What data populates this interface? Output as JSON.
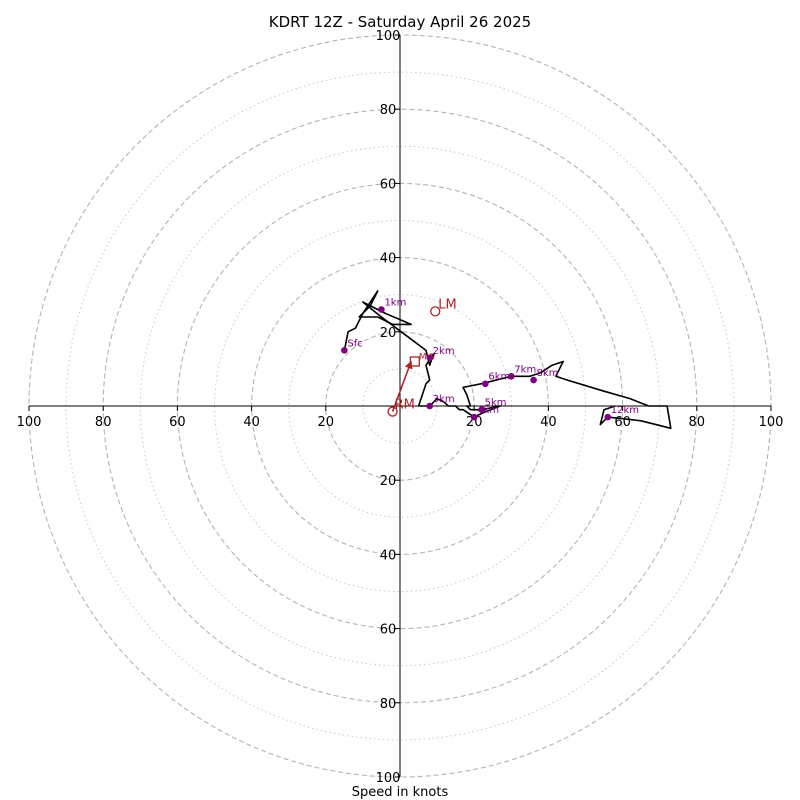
{
  "chart_data": {
    "type": "hodograph",
    "title": "KDRT 12Z - Saturday April 26 2025",
    "xlabel": "Speed in knots",
    "range": [
      -100,
      100
    ],
    "rings_major": [
      20,
      40,
      60,
      80,
      100
    ],
    "rings_minor": [
      10,
      30,
      50,
      70,
      90
    ],
    "tick_labels": {
      "left": [
        "100",
        "80",
        "60",
        "40",
        "20"
      ],
      "right": [
        "20",
        "40",
        "60",
        "80",
        "100"
      ],
      "top": [
        "20",
        "40",
        "60",
        "80",
        "100"
      ],
      "bottom": [
        "20",
        "40",
        "60",
        "80",
        "100"
      ]
    },
    "tick_values": [
      20,
      40,
      60,
      80,
      100
    ],
    "profile": {
      "color": "#000000",
      "points": [
        [
          -15,
          15
        ],
        [
          -14,
          20
        ],
        [
          -12,
          21
        ],
        [
          -10,
          25
        ],
        [
          -8,
          28
        ],
        [
          -6,
          31
        ],
        [
          -8,
          27
        ],
        [
          -11,
          24
        ],
        [
          -6,
          24
        ],
        [
          -2,
          22
        ],
        [
          3,
          22
        ],
        [
          -4,
          25
        ],
        [
          -10,
          28
        ],
        [
          -5,
          24
        ],
        [
          3,
          18
        ],
        [
          7,
          15
        ],
        [
          8,
          11
        ],
        [
          9,
          14
        ],
        [
          7,
          11
        ],
        [
          8,
          7
        ],
        [
          7,
          6
        ],
        [
          6,
          3
        ],
        [
          5,
          0
        ],
        [
          8,
          0
        ],
        [
          10,
          2
        ],
        [
          12,
          1
        ],
        [
          13,
          0
        ],
        [
          15,
          0
        ],
        [
          16,
          -1
        ],
        [
          17,
          -1
        ],
        [
          20,
          -3
        ],
        [
          22,
          -2
        ],
        [
          27,
          0
        ],
        [
          22,
          -1
        ],
        [
          19,
          -1
        ],
        [
          18,
          0
        ],
        [
          19,
          0
        ],
        [
          18,
          3
        ],
        [
          17,
          5
        ],
        [
          22,
          6
        ],
        [
          26,
          7
        ],
        [
          30,
          8
        ],
        [
          33,
          8
        ],
        [
          35,
          8
        ],
        [
          38,
          9
        ],
        [
          41,
          11
        ],
        [
          44,
          12
        ],
        [
          42,
          8
        ],
        [
          45,
          7
        ],
        [
          55,
          4
        ],
        [
          62,
          2
        ],
        [
          67,
          0
        ],
        [
          72,
          0
        ],
        [
          73,
          -6
        ],
        [
          65,
          -4
        ],
        [
          56,
          -3
        ],
        [
          54,
          -5
        ],
        [
          55,
          -1
        ],
        [
          58,
          0
        ]
      ]
    },
    "height_markers": {
      "color": "#800080",
      "items": [
        {
          "label": "Sfc",
          "u": -15,
          "v": 15
        },
        {
          "label": "1km",
          "u": -5,
          "v": 26
        },
        {
          "label": "2km",
          "u": 8,
          "v": 13
        },
        {
          "label": "3km",
          "u": 8,
          "v": 0
        },
        {
          "label": "4km",
          "u": 20,
          "v": -3
        },
        {
          "label": "5km",
          "u": 22,
          "v": -1
        },
        {
          "label": "6km",
          "u": 23,
          "v": 6
        },
        {
          "label": "7km",
          "u": 30,
          "v": 8
        },
        {
          "label": "8km",
          "u": 36,
          "v": 7
        },
        {
          "label": "12km",
          "u": 56,
          "v": -3
        }
      ]
    },
    "storm_motion": {
      "color": "#b22222",
      "left_mover": {
        "label": "LM",
        "u": 9.5,
        "v": 25.5
      },
      "right_mover": {
        "label": "RM",
        "u": -2,
        "v": -1.5
      },
      "mean_wind": {
        "label": "MW",
        "u": 4,
        "v": 12
      },
      "arrow": {
        "from": [
          -2,
          -1.5
        ],
        "to": [
          3,
          12
        ]
      }
    }
  }
}
